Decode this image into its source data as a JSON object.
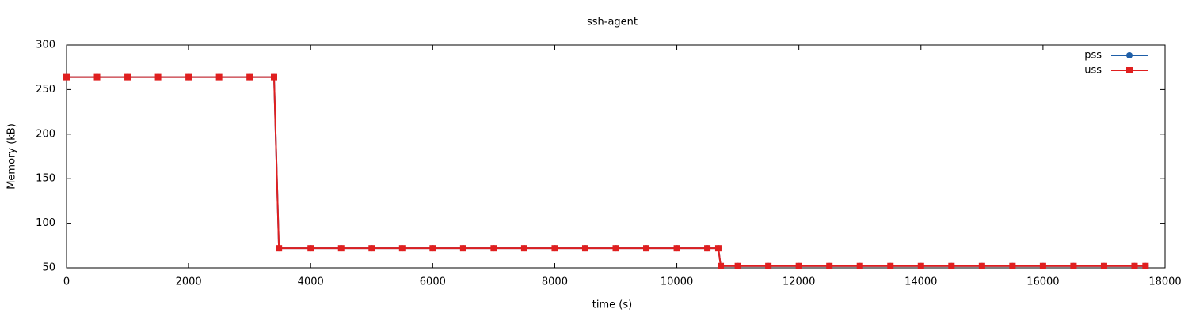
{
  "chart_data": {
    "type": "line",
    "title": "ssh-agent",
    "x_label": "time (s)",
    "y_label": "Memory (kB)",
    "x": [
      0,
      500,
      1000,
      1500,
      2000,
      2500,
      3000,
      3400,
      3480,
      4000,
      4500,
      5000,
      5500,
      6000,
      6500,
      7000,
      7500,
      8000,
      8500,
      9000,
      9500,
      10000,
      10500,
      10680,
      10720,
      11000,
      11500,
      12000,
      12500,
      13000,
      13500,
      14000,
      14500,
      15000,
      15500,
      16000,
      16500,
      17000,
      17500,
      17680
    ],
    "series": [
      {
        "name": "pss",
        "color": "#1f5fa8",
        "marker": "circle",
        "values": [
          264,
          264,
          264,
          264,
          264,
          264,
          264,
          264,
          72,
          72,
          72,
          72,
          72,
          72,
          72,
          72,
          72,
          72,
          72,
          72,
          72,
          72,
          72,
          72,
          52,
          52,
          52,
          52,
          52,
          52,
          52,
          52,
          52,
          52,
          52,
          52,
          52,
          52,
          52,
          52
        ]
      },
      {
        "name": "uss",
        "color": "#e01f1f",
        "marker": "square",
        "values": [
          264,
          264,
          264,
          264,
          264,
          264,
          264,
          264,
          72,
          72,
          72,
          72,
          72,
          72,
          72,
          72,
          72,
          72,
          72,
          72,
          72,
          72,
          72,
          72,
          52,
          52,
          52,
          52,
          52,
          52,
          52,
          52,
          52,
          52,
          52,
          52,
          52,
          52,
          52,
          52
        ]
      }
    ],
    "xlim": [
      0,
      18000
    ],
    "xticks": [
      0,
      2000,
      4000,
      6000,
      8000,
      10000,
      12000,
      14000,
      16000,
      18000
    ],
    "ylim": [
      50,
      300
    ],
    "yticks": [
      50,
      100,
      150,
      200,
      250,
      300
    ],
    "grid": false,
    "legend": "top right"
  }
}
